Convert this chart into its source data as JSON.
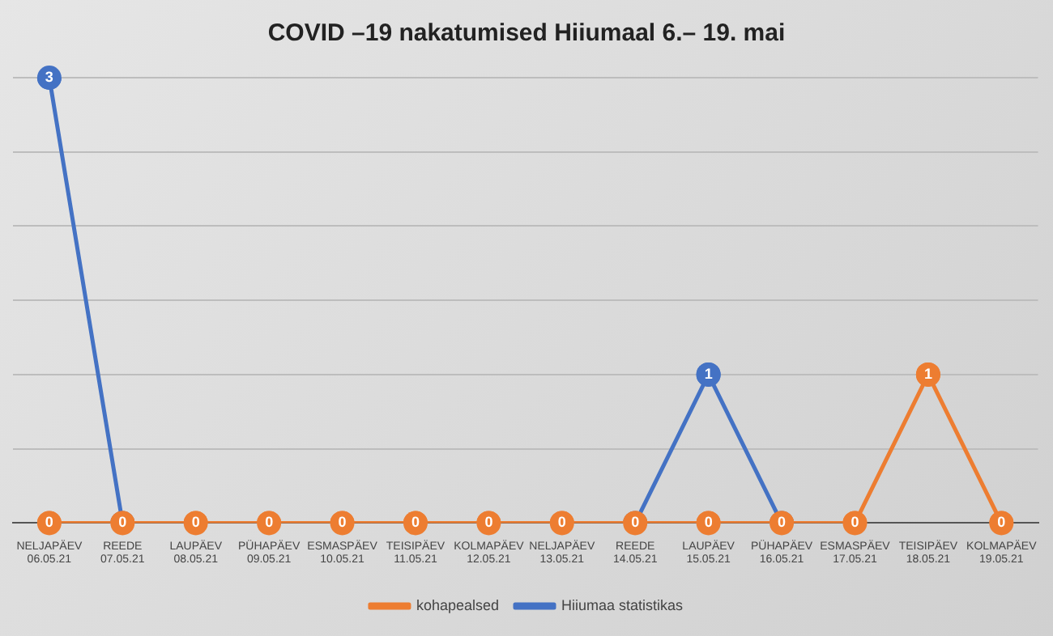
{
  "chart_data": {
    "type": "line",
    "title": "COVID –19 nakatumised Hiiumaal 6.– 19. mai",
    "categories": [
      "NELJAPÄEV\n06.05.21",
      "REEDE\n07.05.21",
      "LAUPÄEV\n08.05.21",
      "PÜHAPÄEV\n09.05.21",
      "ESMASPÄEV\n10.05.21",
      "TEISIPÄEV\n11.05.21",
      "KOLMAPÄEV\n12.05.21",
      "NELJAPÄEV\n13.05.21",
      "REEDE\n14.05.21",
      "LAUPÄEV\n15.05.21",
      "PÜHAPÄEV\n16.05.21",
      "ESMASPÄEV\n17.05.21",
      "TEISIPÄEV\n18.05.21",
      "KOLMAPÄEV\n19.05.21"
    ],
    "series": [
      {
        "name": "Hiiumaa statistikas",
        "color": "#4472c4",
        "values": [
          3,
          0,
          null,
          null,
          null,
          null,
          null,
          null,
          0,
          1,
          0,
          null,
          null,
          null
        ],
        "value_labels": [
          "3",
          null,
          null,
          null,
          null,
          null,
          null,
          null,
          null,
          "1",
          null,
          null,
          null,
          null
        ]
      },
      {
        "name": "kohapealsed",
        "color": "#ed7d31",
        "values": [
          0,
          0,
          0,
          0,
          0,
          0,
          0,
          0,
          0,
          0,
          0,
          0,
          1,
          0
        ],
        "value_labels": [
          "0",
          "0",
          "0",
          "0",
          "0",
          "0",
          "0",
          "0",
          "0",
          "0",
          "0",
          "0",
          "1",
          "0"
        ]
      }
    ],
    "ylim": [
      0,
      3
    ],
    "yticks": [
      {
        "value": 0,
        "label": null
      },
      {
        "value": 0.5,
        "label": null
      },
      {
        "value": 1,
        "label": null
      },
      {
        "value": 1.5,
        "label": null
      },
      {
        "value": 2,
        "label": null
      },
      {
        "value": 2.5,
        "label": null
      },
      {
        "value": 3,
        "label": null
      }
    ],
    "tick_labels": "x",
    "grid": "y",
    "legend": "bottom",
    "marker": "circle"
  }
}
